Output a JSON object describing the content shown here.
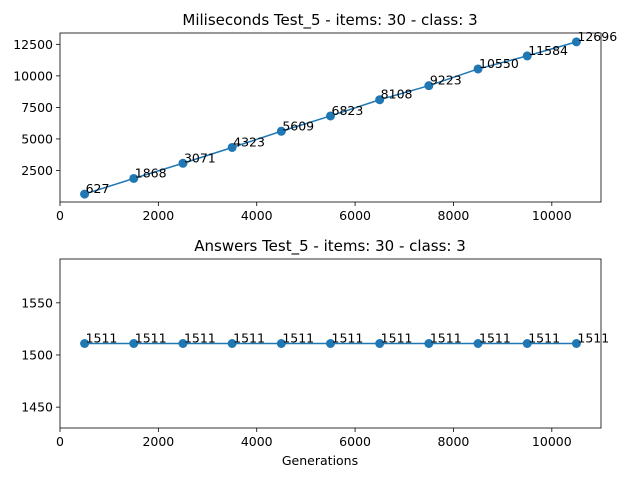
{
  "chart_data": [
    {
      "type": "line",
      "title": "Miliseconds Test_5 - items: 30 - class: 3",
      "xlabel": "",
      "ylabel": "",
      "x": [
        500,
        1500,
        2500,
        3500,
        4500,
        5500,
        6500,
        7500,
        8500,
        9500,
        10500
      ],
      "series": [
        {
          "values": [
            627,
            1868,
            3071,
            4323,
            5609,
            6823,
            8108,
            9223,
            10550,
            11584,
            12696
          ]
        }
      ],
      "data_labels": [
        "627",
        "1868",
        "3071",
        "4323",
        "5609",
        "6823",
        "8108",
        "9223",
        "10550",
        "11584",
        "12696"
      ],
      "xlim": [
        0,
        11000
      ],
      "ylim": [
        0,
        13400
      ],
      "x_ticks": [
        0,
        2000,
        4000,
        6000,
        8000,
        10000
      ],
      "y_ticks": [
        2500,
        5000,
        7500,
        10000,
        12500
      ],
      "grid": false,
      "color": "#1f77b4"
    },
    {
      "type": "line",
      "title": "Answers Test_5 - items: 30 - class: 3",
      "xlabel": "Generations",
      "ylabel": "",
      "x": [
        500,
        1500,
        2500,
        3500,
        4500,
        5500,
        6500,
        7500,
        8500,
        9500,
        10500
      ],
      "series": [
        {
          "values": [
            1511,
            1511,
            1511,
            1511,
            1511,
            1511,
            1511,
            1511,
            1511,
            1511,
            1511
          ]
        }
      ],
      "data_labels": [
        "1511",
        "1511",
        "1511",
        "1511",
        "1511",
        "1511",
        "1511",
        "1511",
        "1511",
        "1511",
        "1511"
      ],
      "xlim": [
        0,
        11000
      ],
      "ylim": [
        1430,
        1592
      ],
      "x_ticks": [
        0,
        2000,
        4000,
        6000,
        8000,
        10000
      ],
      "y_ticks": [
        1450,
        1500,
        1550
      ],
      "grid": false,
      "color": "#1f77b4"
    }
  ]
}
